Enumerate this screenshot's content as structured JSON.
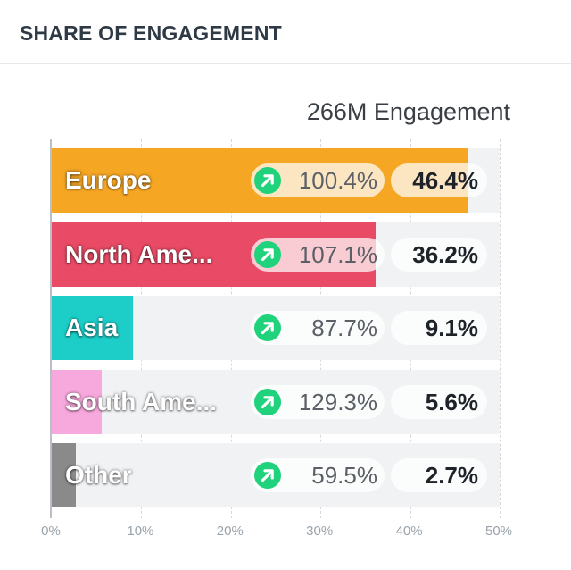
{
  "header": {
    "title": "SHARE OF ENGAGEMENT"
  },
  "chart_data": {
    "type": "bar",
    "orientation": "horizontal",
    "total_label": "266M Engagement",
    "categories": [
      "Europe",
      "North Ame...",
      "Asia",
      "South Ame...",
      "Other"
    ],
    "values": [
      46.4,
      36.2,
      9.1,
      5.6,
      2.7
    ],
    "value_labels": [
      "46.4%",
      "36.2%",
      "9.1%",
      "5.6%",
      "2.7%"
    ],
    "growth_labels": [
      "100.4%",
      "107.1%",
      "87.7%",
      "129.3%",
      "59.5%"
    ],
    "growth_icon": "trend-up-arrow-icon",
    "colors": [
      "#f5a623",
      "#e94a65",
      "#1ccdc8",
      "#f7a8dc",
      "#8a8a8a"
    ],
    "xlim": [
      0,
      50
    ],
    "x_ticks": [
      0,
      10,
      20,
      30,
      40,
      50
    ],
    "x_tick_labels": [
      "0%",
      "10%",
      "20%",
      "30%",
      "40%",
      "50%"
    ],
    "grid": true,
    "legend": "none"
  }
}
